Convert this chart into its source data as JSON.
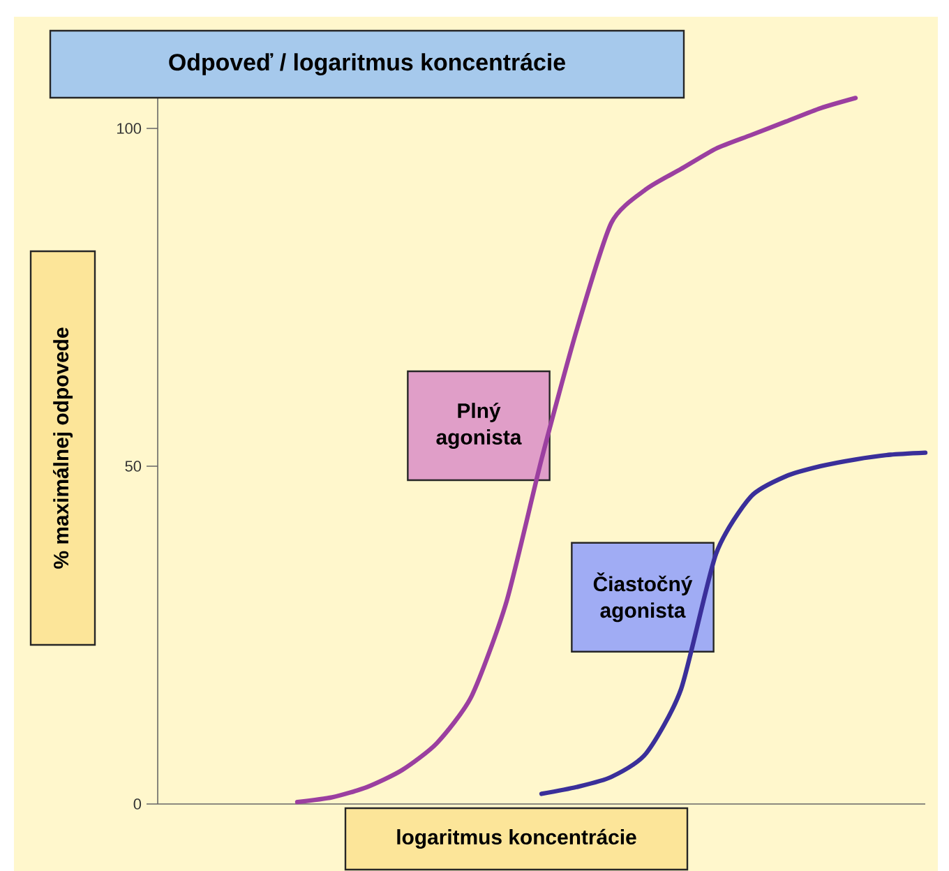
{
  "chart_data": {
    "type": "line",
    "title": "Odpoveď / logaritmus koncentrácie",
    "xlabel": "logaritmus koncentrácie",
    "ylabel": "% maximálnej odpovede",
    "categories": [
      null,
      null,
      null,
      null,
      null,
      null,
      null,
      null,
      null,
      null,
      null,
      null,
      null,
      null,
      null,
      null,
      null,
      null,
      null,
      null,
      null,
      null,
      null
    ],
    "series": [
      {
        "name": "Plný agonista",
        "color": "#9b3fa0",
        "values": [
          null,
          null,
          null,
          null,
          0.3,
          1,
          2.5,
          5,
          9,
          16,
          30,
          51,
          70,
          86,
          91,
          94,
          97,
          99,
          101,
          103,
          104.5,
          null,
          null
        ]
      },
      {
        "name": "Čiastočný agonista",
        "color": "#3a2f9a",
        "values": [
          null,
          null,
          null,
          null,
          null,
          null,
          null,
          null,
          null,
          null,
          null,
          1.5,
          2.5,
          4,
          7.5,
          17,
          37,
          45.5,
          48.5,
          50,
          51,
          51.7,
          52
        ]
      }
    ],
    "ylim": [
      0,
      106
    ],
    "yticks": [
      0,
      50,
      100
    ],
    "tick_labels": "y",
    "grid": false,
    "legend": false
  }
}
